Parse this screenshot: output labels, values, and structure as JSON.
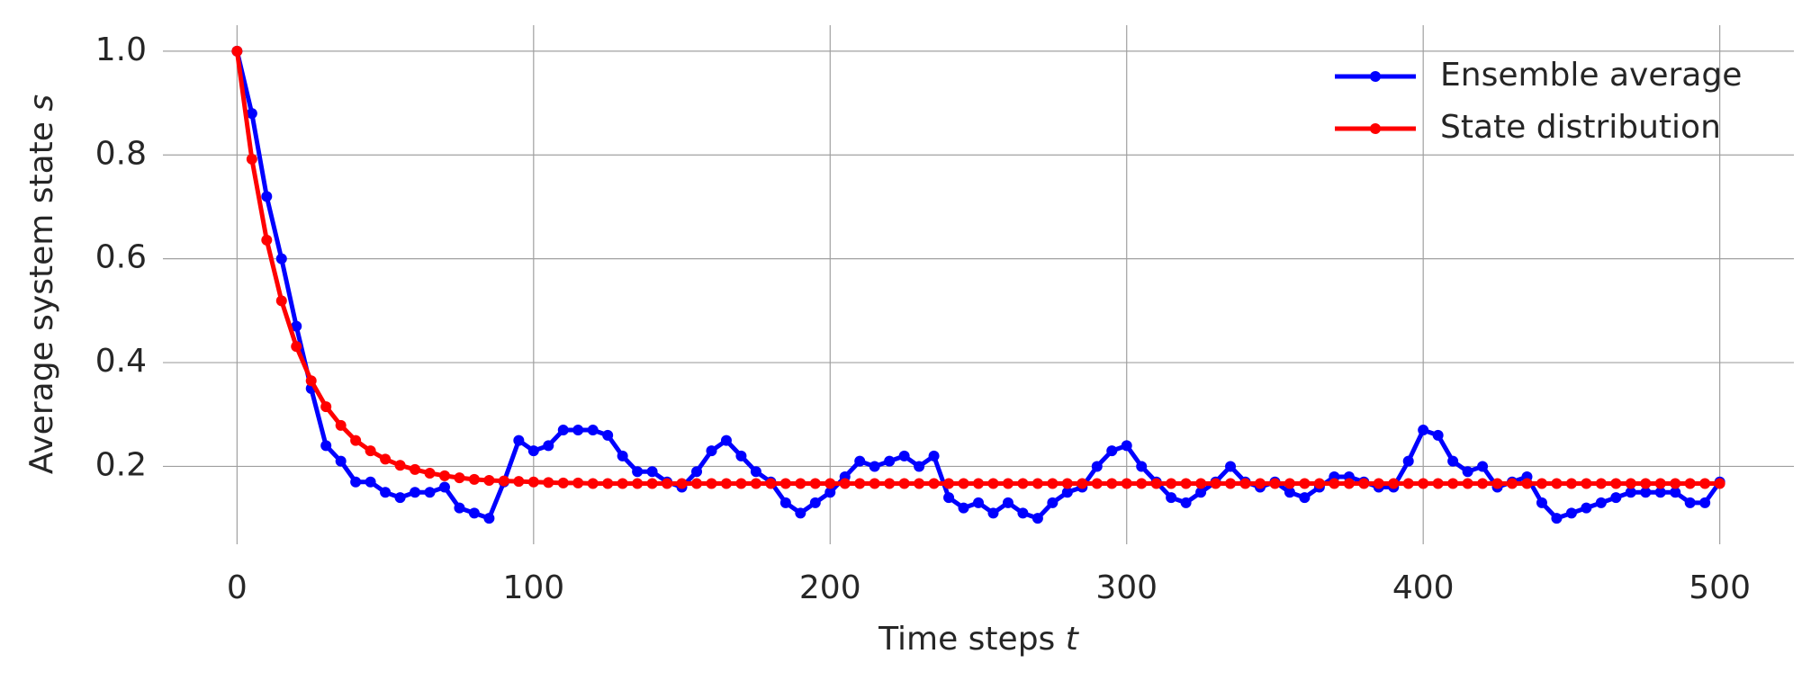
{
  "chart_data": {
    "type": "line",
    "x_label": {
      "text": "Time steps",
      "symbol": "t"
    },
    "y_label": {
      "text": "Average system state",
      "symbol": "s"
    },
    "x": [
      0,
      5,
      10,
      15,
      20,
      25,
      30,
      35,
      40,
      45,
      50,
      55,
      60,
      65,
      70,
      75,
      80,
      85,
      90,
      95,
      100,
      105,
      110,
      115,
      120,
      125,
      130,
      135,
      140,
      145,
      150,
      155,
      160,
      165,
      170,
      175,
      180,
      185,
      190,
      195,
      200,
      205,
      210,
      215,
      220,
      225,
      230,
      235,
      240,
      245,
      250,
      255,
      260,
      265,
      270,
      275,
      280,
      285,
      290,
      295,
      300,
      305,
      310,
      315,
      320,
      325,
      330,
      335,
      340,
      345,
      350,
      355,
      360,
      365,
      370,
      375,
      380,
      385,
      390,
      395,
      400,
      405,
      410,
      415,
      420,
      425,
      430,
      435,
      440,
      445,
      450,
      455,
      460,
      465,
      470,
      475,
      480,
      485,
      490,
      495,
      500
    ],
    "series": [
      {
        "name": "Ensemble average",
        "color": "#0000ff",
        "values": [
          1.0,
          0.88,
          0.72,
          0.6,
          0.47,
          0.35,
          0.24,
          0.21,
          0.17,
          0.17,
          0.15,
          0.14,
          0.15,
          0.15,
          0.16,
          0.12,
          0.11,
          0.1,
          0.17,
          0.25,
          0.23,
          0.24,
          0.27,
          0.27,
          0.27,
          0.26,
          0.22,
          0.19,
          0.19,
          0.17,
          0.16,
          0.19,
          0.23,
          0.25,
          0.22,
          0.19,
          0.17,
          0.13,
          0.11,
          0.13,
          0.15,
          0.18,
          0.21,
          0.2,
          0.21,
          0.22,
          0.2,
          0.22,
          0.14,
          0.12,
          0.13,
          0.11,
          0.13,
          0.11,
          0.1,
          0.13,
          0.15,
          0.16,
          0.2,
          0.23,
          0.24,
          0.2,
          0.17,
          0.14,
          0.13,
          0.15,
          0.17,
          0.2,
          0.17,
          0.16,
          0.17,
          0.15,
          0.14,
          0.16,
          0.18,
          0.18,
          0.17,
          0.16,
          0.16,
          0.21,
          0.27,
          0.26,
          0.21,
          0.19,
          0.2,
          0.16,
          0.17,
          0.18,
          0.13,
          0.1,
          0.11,
          0.12,
          0.13,
          0.14,
          0.15,
          0.15,
          0.15,
          0.15,
          0.13,
          0.13,
          0.17
        ]
      },
      {
        "name": "State distribution",
        "color": "#ff0000",
        "values": [
          1.0,
          0.792,
          0.636,
          0.519,
          0.431,
          0.365,
          0.315,
          0.279,
          0.25,
          0.23,
          0.214,
          0.202,
          0.194,
          0.187,
          0.182,
          0.178,
          0.175,
          0.173,
          0.172,
          0.171,
          0.17,
          0.169,
          0.168,
          0.168,
          0.167,
          0.167,
          0.167,
          0.167,
          0.167,
          0.167,
          0.167,
          0.167,
          0.167,
          0.167,
          0.167,
          0.167,
          0.167,
          0.167,
          0.167,
          0.167,
          0.167,
          0.167,
          0.167,
          0.167,
          0.167,
          0.167,
          0.167,
          0.167,
          0.167,
          0.167,
          0.167,
          0.167,
          0.167,
          0.167,
          0.167,
          0.167,
          0.167,
          0.167,
          0.167,
          0.167,
          0.167,
          0.167,
          0.167,
          0.167,
          0.167,
          0.167,
          0.167,
          0.167,
          0.167,
          0.167,
          0.167,
          0.167,
          0.167,
          0.167,
          0.167,
          0.167,
          0.167,
          0.167,
          0.167,
          0.167,
          0.167,
          0.167,
          0.167,
          0.167,
          0.167,
          0.167,
          0.167,
          0.167,
          0.167,
          0.167,
          0.167,
          0.167,
          0.167,
          0.167,
          0.167,
          0.167,
          0.167,
          0.167,
          0.167,
          0.167,
          0.167
        ]
      }
    ],
    "xlim": [
      -25,
      525
    ],
    "ylim": [
      0.05,
      1.05
    ],
    "xticks": [
      0,
      100,
      200,
      300,
      400,
      500
    ],
    "yticks": [
      0.2,
      0.4,
      0.6,
      0.8,
      {
        "value": 1,
        "label": "1.0"
      }
    ],
    "grid": true,
    "legend": "upper right"
  }
}
